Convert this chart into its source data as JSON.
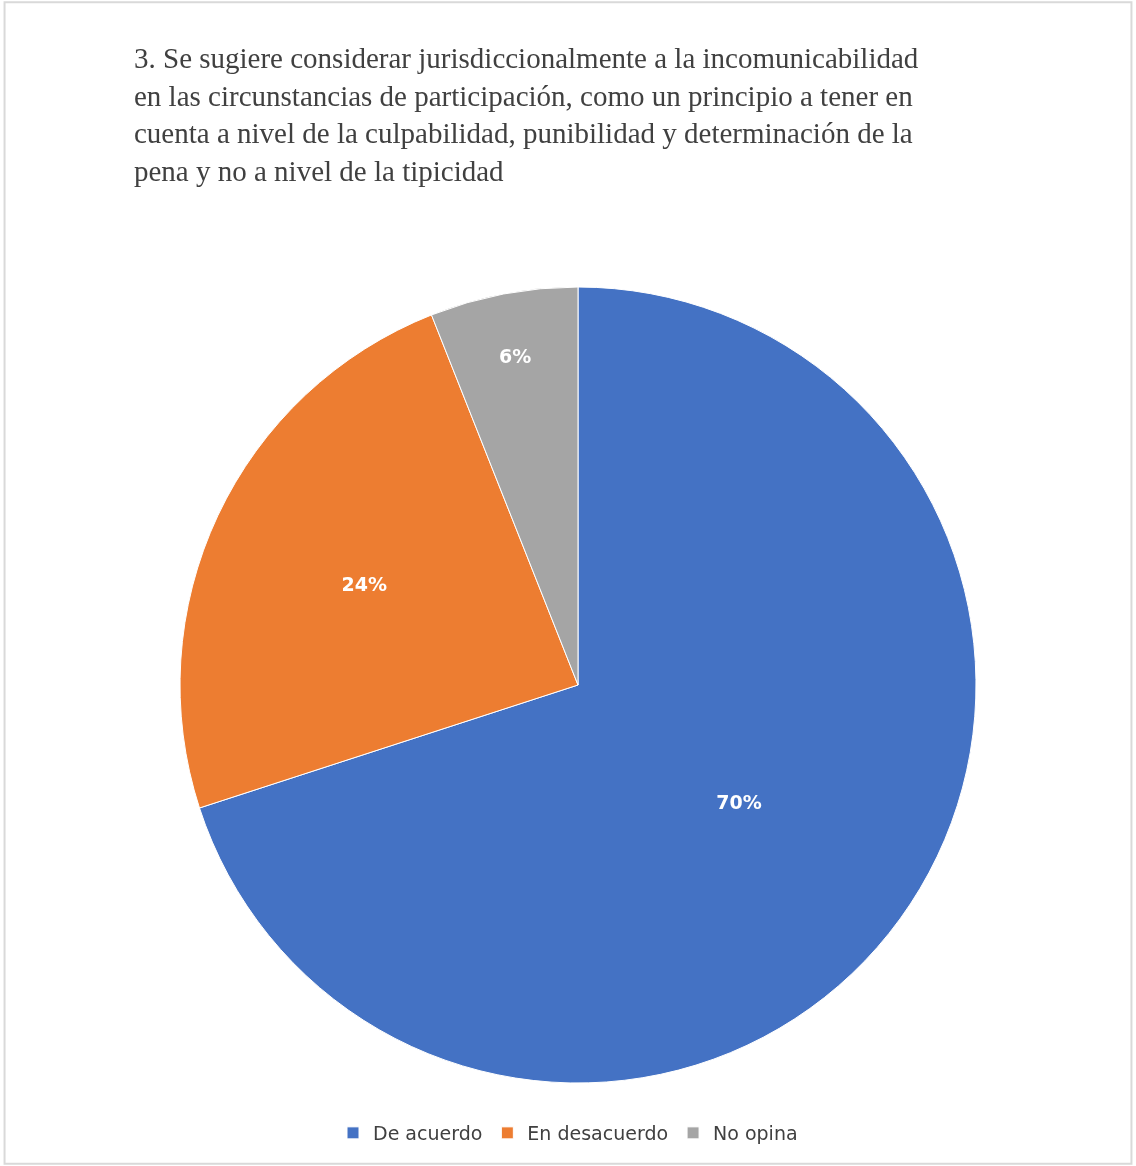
{
  "chart_data": {
    "type": "pie",
    "title": "3. Se sugiere considerar jurisdiccionalmente a la incomunicabilidad en las circunstancias de participación, como un principio a tener en cuenta a nivel de la culpabilidad, punibilidad y determinación de la pena y no a nivel de la tipicidad",
    "categories": [
      "De acuerdo",
      "En desacuerdo",
      "No opina"
    ],
    "values": [
      70,
      24,
      6
    ],
    "colors": [
      "#4472c4",
      "#ed7d31",
      "#a5a5a5"
    ],
    "value_labels": [
      "70%",
      "24%",
      "6%"
    ],
    "legend": "bottom"
  }
}
